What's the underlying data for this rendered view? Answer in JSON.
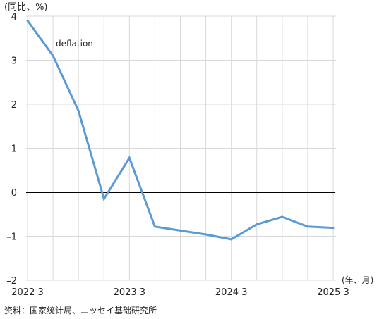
{
  "chart_data": {
    "type": "line",
    "title": "",
    "ylabel": "(同比、%)",
    "xlabel": "(年、月)",
    "source": "资料：国家统计局、ニッセイ基础研究所",
    "annotation": "deflation",
    "ylim": [
      -2,
      4
    ],
    "yticks": [
      4,
      3,
      2,
      1,
      0,
      -1,
      -2
    ],
    "ytick_labels": [
      "4",
      "3",
      "2",
      "1",
      "0",
      "–1",
      "–2"
    ],
    "x_tick_labels": [
      {
        "index": 0,
        "label": "2022 3"
      },
      {
        "index": 4,
        "label": "2023 3"
      },
      {
        "index": 8,
        "label": "2024 3"
      },
      {
        "index": 12,
        "label": "2025 3"
      }
    ],
    "x_count": 13,
    "grid": true,
    "zero_line": true,
    "series": [
      {
        "color": "#5b9bd5",
        "values": [
          3.9,
          3.1,
          1.85,
          -0.15,
          0.78,
          -0.78,
          -0.87,
          -0.96,
          -1.07,
          -0.73,
          -0.56,
          -0.78,
          -0.81
        ]
      }
    ]
  }
}
